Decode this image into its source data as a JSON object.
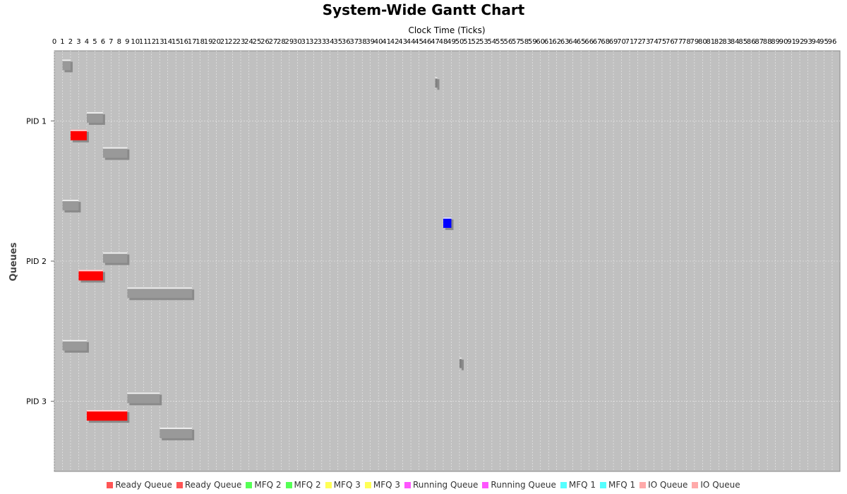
{
  "chart_data": {
    "type": "gantt",
    "title": "System-Wide Gantt Chart",
    "xlabel": "Clock Time (Ticks)",
    "ylabel": "Queues",
    "xlim": [
      0,
      96
    ],
    "x_ticks_start": 0,
    "x_ticks_end": 96,
    "categories": [
      "PID 1",
      "PID 2",
      "PID 3"
    ],
    "grid": true,
    "legend_position": "bottom",
    "legend": [
      {
        "label": "Ready Queue",
        "color": "#ff5555"
      },
      {
        "label": "Ready Queue",
        "color": "#ff5555"
      },
      {
        "label": "MFQ 2",
        "color": "#55ff55"
      },
      {
        "label": "MFQ 2",
        "color": "#55ff55"
      },
      {
        "label": "MFQ 3",
        "color": "#ffff55"
      },
      {
        "label": "MFQ 3",
        "color": "#ffff55"
      },
      {
        "label": "Running Queue",
        "color": "#ff55ff"
      },
      {
        "label": "Running Queue",
        "color": "#ff55ff"
      },
      {
        "label": "MFQ 1",
        "color": "#55ffff"
      },
      {
        "label": "MFQ 1",
        "color": "#55ffff"
      },
      {
        "label": "IO Queue",
        "color": "#ffaaaa"
      },
      {
        "label": "IO Queue",
        "color": "#ffaaaa"
      }
    ],
    "tasks": [
      {
        "pid": "PID 1",
        "slot": 0,
        "start": 1,
        "end": 2,
        "color": "#999999"
      },
      {
        "pid": "PID 1",
        "slot": 1,
        "start": 47,
        "end": 47.2,
        "color": "#808080"
      },
      {
        "pid": "PID 1",
        "slot": 3,
        "start": 4,
        "end": 6,
        "color": "#999999"
      },
      {
        "pid": "PID 1",
        "slot": 4,
        "start": 2,
        "end": 4,
        "color": "#ff0000"
      },
      {
        "pid": "PID 1",
        "slot": 5,
        "start": 6,
        "end": 9,
        "color": "#999999"
      },
      {
        "pid": "PID 2",
        "slot": 0,
        "start": 1,
        "end": 3,
        "color": "#999999"
      },
      {
        "pid": "PID 2",
        "slot": 1,
        "start": 48,
        "end": 49,
        "color": "#0000ff"
      },
      {
        "pid": "PID 2",
        "slot": 3,
        "start": 6,
        "end": 9,
        "color": "#999999"
      },
      {
        "pid": "PID 2",
        "slot": 4,
        "start": 3,
        "end": 6,
        "color": "#ff0000"
      },
      {
        "pid": "PID 2",
        "slot": 5,
        "start": 9,
        "end": 17,
        "color": "#999999"
      },
      {
        "pid": "PID 3",
        "slot": 0,
        "start": 1,
        "end": 4,
        "color": "#999999"
      },
      {
        "pid": "PID 3",
        "slot": 1,
        "start": 50,
        "end": 50.2,
        "color": "#808080"
      },
      {
        "pid": "PID 3",
        "slot": 3,
        "start": 9,
        "end": 13,
        "color": "#999999"
      },
      {
        "pid": "PID 3",
        "slot": 4,
        "start": 4,
        "end": 9,
        "color": "#ff0000"
      },
      {
        "pid": "PID 3",
        "slot": 5,
        "start": 13,
        "end": 17,
        "color": "#999999"
      }
    ]
  }
}
